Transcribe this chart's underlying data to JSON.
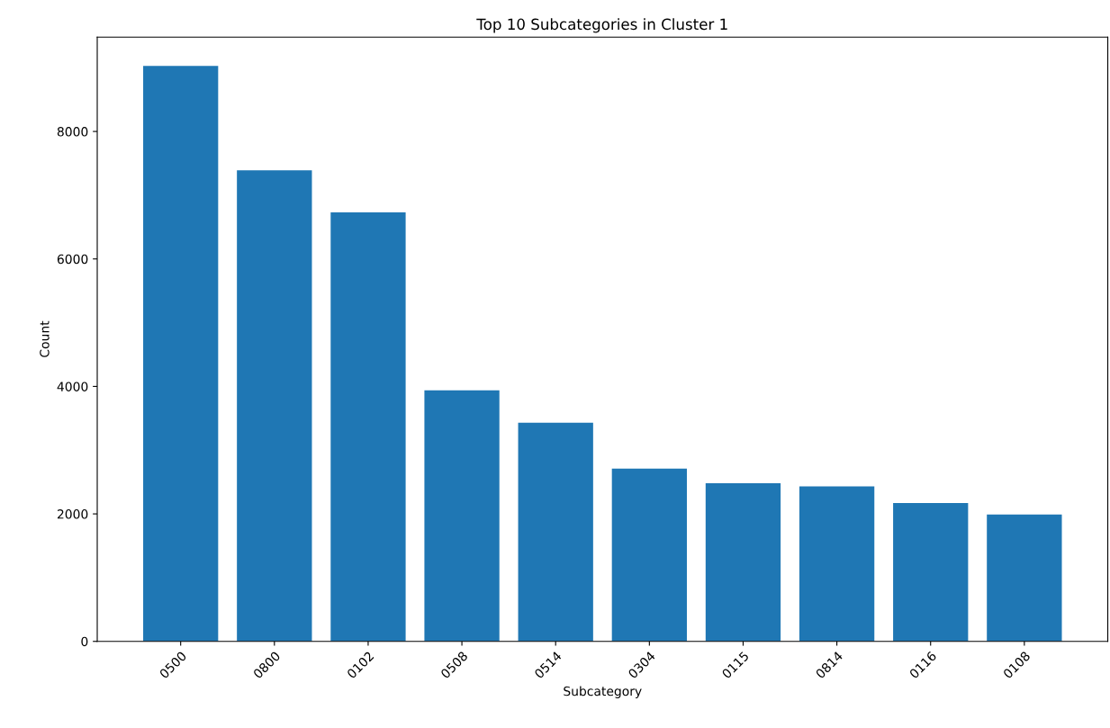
{
  "chart_data": {
    "type": "bar",
    "title": "Top 10 Subcategories in Cluster 1",
    "xlabel": "Subcategory",
    "ylabel": "Count",
    "categories": [
      "0500",
      "0800",
      "0102",
      "0508",
      "0514",
      "0304",
      "0115",
      "0814",
      "0116",
      "0108"
    ],
    "values": [
      9030,
      7390,
      6730,
      3940,
      3430,
      2710,
      2480,
      2430,
      2170,
      1990
    ],
    "color": "#1f77b4",
    "ylim": [
      0,
      9480
    ],
    "yticks": [
      0,
      2000,
      4000,
      6000,
      8000
    ],
    "grid": false
  }
}
